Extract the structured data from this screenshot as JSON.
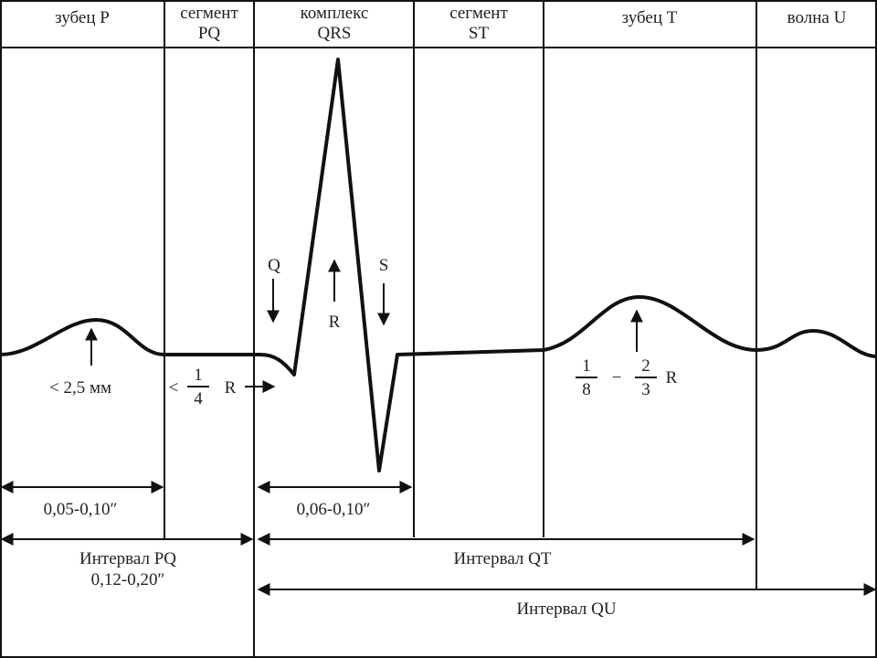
{
  "headers": [
    {
      "lines": [
        "зубец P"
      ]
    },
    {
      "lines": [
        "сегмент",
        "PQ"
      ]
    },
    {
      "lines": [
        "комплекс",
        "QRS"
      ]
    },
    {
      "lines": [
        "сегмент",
        "ST"
      ]
    },
    {
      "lines": [
        "зубец T"
      ]
    },
    {
      "lines": [
        "волна U"
      ]
    }
  ],
  "waves": {
    "q": "Q",
    "r": "R",
    "s": "S"
  },
  "amplitudes": {
    "p": "< 2,5 мм",
    "pq": {
      "prefix": "<",
      "numerator": "1",
      "denominator": "4",
      "suffix": "R"
    },
    "t": {
      "numerator_a": "1",
      "denominator_a": "8",
      "separator": "−",
      "numerator_b": "2",
      "denominator_b": "3",
      "suffix": "R"
    }
  },
  "durations": {
    "p": "0,05-0,10″",
    "qrs": "0,06-0,10″"
  },
  "intervals": {
    "pq": {
      "name": "Интервал PQ",
      "duration": "0,12-0,20″"
    },
    "qt": {
      "name": "Интервал QT"
    },
    "qu": {
      "name": "Интервал QU"
    }
  }
}
